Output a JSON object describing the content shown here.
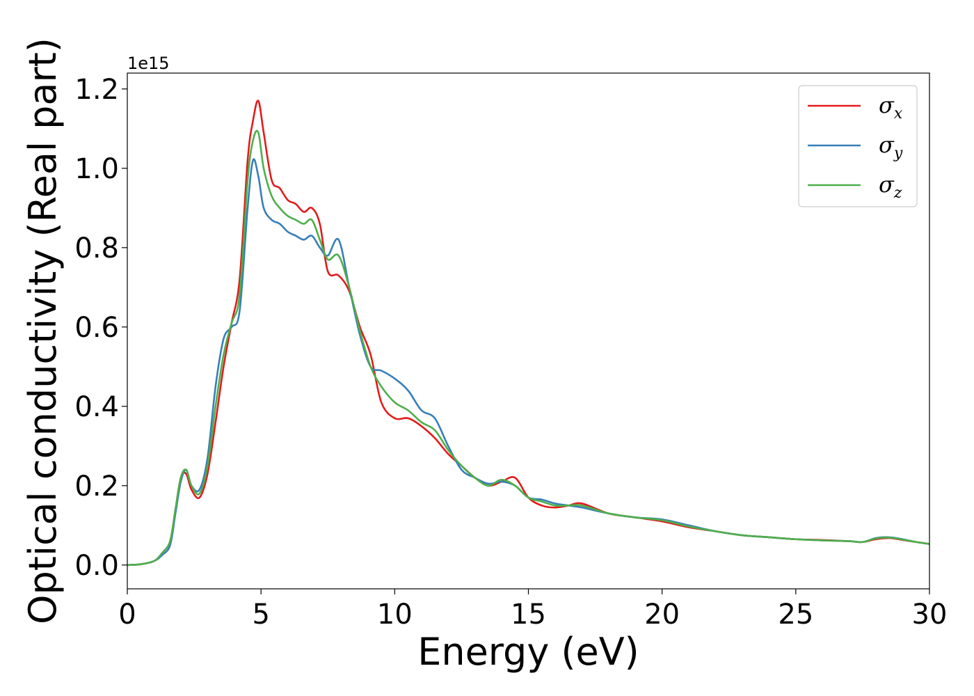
{
  "chart_data": {
    "type": "line",
    "title": "",
    "xlabel": "Energy (eV)",
    "ylabel": "Optical conductivity (Real part)",
    "y_offset_label": "1e15",
    "xlim": [
      0,
      30
    ],
    "ylim": [
      -0.06,
      1.24
    ],
    "xticks": [
      0,
      5,
      10,
      15,
      20,
      25,
      30
    ],
    "xtick_labels": [
      "0",
      "5",
      "10",
      "15",
      "20",
      "25",
      "30"
    ],
    "yticks": [
      0.0,
      0.2,
      0.4,
      0.6,
      0.8,
      1.0,
      1.2
    ],
    "ytick_labels": [
      "0.0",
      "0.2",
      "0.4",
      "0.6",
      "0.8",
      "1.0",
      "1.2"
    ],
    "grid": false,
    "legend_position": "top-right",
    "x": [
      0,
      0.5,
      1.0,
      1.3,
      1.6,
      1.8,
      2.0,
      2.2,
      2.4,
      2.7,
      3.0,
      3.3,
      3.6,
      3.9,
      4.2,
      4.5,
      4.7,
      4.9,
      5.1,
      5.4,
      5.7,
      6.0,
      6.3,
      6.6,
      6.9,
      7.2,
      7.5,
      7.9,
      8.3,
      8.7,
      9.1,
      9.5,
      10.0,
      10.5,
      11.0,
      11.5,
      12.0,
      12.5,
      13.0,
      13.5,
      14.0,
      14.5,
      15.0,
      15.5,
      16.0,
      16.5,
      17.0,
      18.0,
      19.0,
      20.0,
      21.0,
      22.0,
      23.0,
      24.0,
      25.0,
      26.0,
      27.0,
      27.5,
      28.0,
      28.5,
      29.0,
      29.5,
      30.0
    ],
    "series": [
      {
        "name": "σx",
        "symbol": "σ",
        "subscript": "x",
        "color": "#e41a1c",
        "values": [
          0.0,
          0.002,
          0.01,
          0.03,
          0.06,
          0.14,
          0.22,
          0.23,
          0.19,
          0.17,
          0.23,
          0.36,
          0.5,
          0.61,
          0.72,
          1.02,
          1.12,
          1.17,
          1.09,
          0.97,
          0.95,
          0.92,
          0.91,
          0.89,
          0.9,
          0.86,
          0.74,
          0.73,
          0.69,
          0.6,
          0.53,
          0.41,
          0.37,
          0.37,
          0.35,
          0.32,
          0.28,
          0.25,
          0.22,
          0.2,
          0.21,
          0.22,
          0.17,
          0.15,
          0.145,
          0.15,
          0.155,
          0.13,
          0.12,
          0.11,
          0.095,
          0.085,
          0.075,
          0.07,
          0.065,
          0.063,
          0.06,
          0.058,
          0.065,
          0.068,
          0.063,
          0.058,
          0.053
        ]
      },
      {
        "name": "σy",
        "symbol": "σ",
        "subscript": "y",
        "color": "#377eb8",
        "values": [
          0.0,
          0.002,
          0.01,
          0.025,
          0.05,
          0.13,
          0.21,
          0.24,
          0.2,
          0.19,
          0.27,
          0.45,
          0.57,
          0.6,
          0.64,
          0.9,
          1.02,
          0.98,
          0.9,
          0.87,
          0.86,
          0.84,
          0.83,
          0.82,
          0.83,
          0.8,
          0.78,
          0.82,
          0.7,
          0.58,
          0.5,
          0.49,
          0.47,
          0.44,
          0.39,
          0.37,
          0.3,
          0.24,
          0.22,
          0.205,
          0.21,
          0.2,
          0.17,
          0.165,
          0.155,
          0.15,
          0.145,
          0.13,
          0.12,
          0.115,
          0.1,
          0.085,
          0.075,
          0.07,
          0.065,
          0.062,
          0.06,
          0.058,
          0.068,
          0.07,
          0.065,
          0.058,
          0.053
        ]
      },
      {
        "name": "σz",
        "symbol": "σ",
        "subscript": "z",
        "color": "#4daf4a",
        "values": [
          0.0,
          0.002,
          0.01,
          0.03,
          0.06,
          0.14,
          0.22,
          0.24,
          0.2,
          0.18,
          0.25,
          0.4,
          0.53,
          0.61,
          0.68,
          0.97,
          1.07,
          1.09,
          1.0,
          0.93,
          0.9,
          0.88,
          0.87,
          0.86,
          0.87,
          0.82,
          0.77,
          0.78,
          0.7,
          0.59,
          0.5,
          0.45,
          0.41,
          0.39,
          0.36,
          0.34,
          0.29,
          0.25,
          0.22,
          0.2,
          0.215,
          0.2,
          0.17,
          0.16,
          0.15,
          0.15,
          0.15,
          0.13,
          0.12,
          0.113,
          0.097,
          0.085,
          0.075,
          0.07,
          0.065,
          0.062,
          0.06,
          0.058,
          0.067,
          0.069,
          0.064,
          0.058,
          0.053
        ]
      }
    ]
  }
}
